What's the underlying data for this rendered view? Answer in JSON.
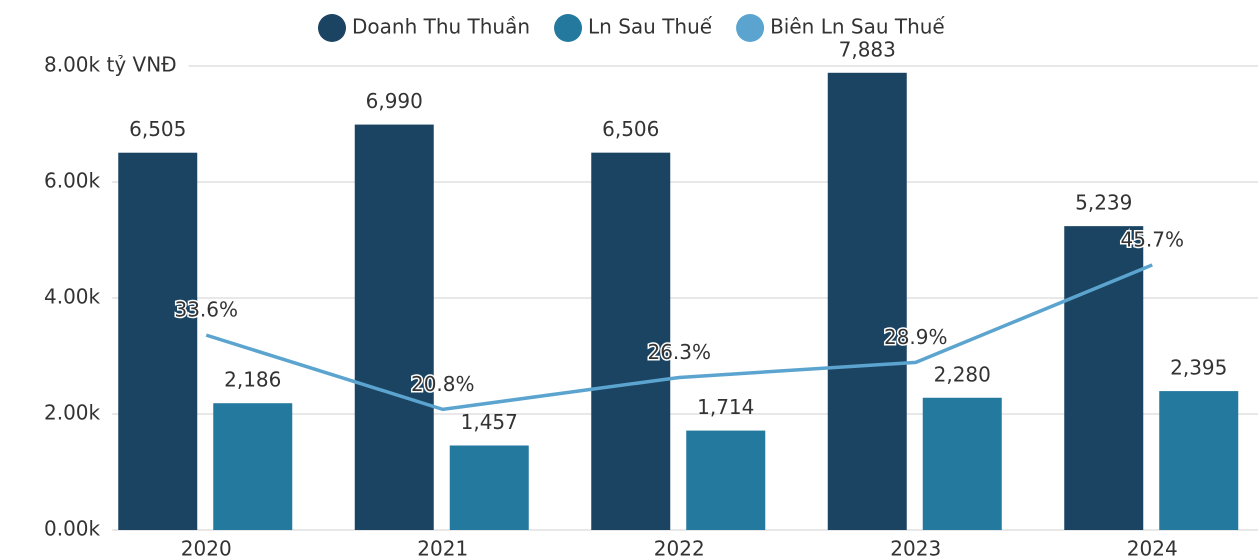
{
  "chart_data": {
    "type": "bar",
    "categories": [
      "2020",
      "2021",
      "2022",
      "2023",
      "2024"
    ],
    "series": [
      {
        "name": "Doanh Thu Thuần",
        "color": "#1b4462",
        "values": [
          6505,
          6990,
          6506,
          7883,
          5239
        ],
        "value_labels": [
          "6,505",
          "6,990",
          "6,506",
          "7,883",
          "5,239"
        ]
      },
      {
        "name": "Ln Sau Thuế",
        "color": "#24799e",
        "values": [
          2186,
          1457,
          1714,
          2280,
          2395
        ],
        "value_labels": [
          "2,186",
          "1,457",
          "1,714",
          "2,280",
          "2,395"
        ]
      },
      {
        "name": "Biên Ln Sau Thuế",
        "color": "#5ba4cf",
        "type": "line",
        "axis": "y2",
        "values": [
          33.6,
          20.8,
          26.3,
          28.9,
          45.7
        ],
        "value_labels": [
          "33.6%",
          "20.8%",
          "26.3%",
          "28.9%",
          "45.7%"
        ]
      }
    ],
    "ylim": [
      0,
      8000
    ],
    "yticks": [
      {
        "value": 0,
        "label": "0.00k"
      },
      {
        "value": 2000,
        "label": "2.00k"
      },
      {
        "value": 4000,
        "label": "4.00k"
      },
      {
        "value": 6000,
        "label": "6.00k"
      },
      {
        "value": 8000,
        "label": "8.00k tỷ VNĐ"
      }
    ],
    "y2lim": [
      0,
      80
    ],
    "grid": true,
    "legend": "top"
  }
}
